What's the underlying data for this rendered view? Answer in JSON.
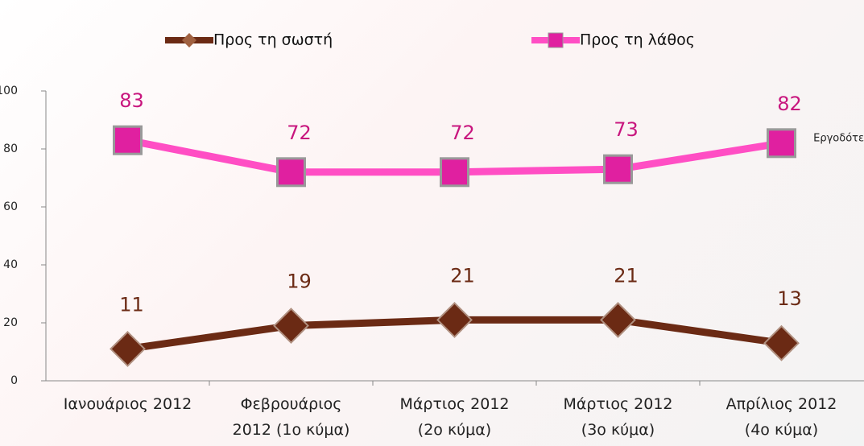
{
  "chart_data": {
    "type": "line",
    "categories": [
      "Ιανουάριος 2012",
      "Φεβρουάριος\n2012 (1ο κύμα)",
      "Μάρτιος 2012\n(2ο κύμα)",
      "Μάρτιος 2012\n(3ο κύμα)",
      "Απρίλιος 2012\n(4ο κύμα)"
    ],
    "series": [
      {
        "name": "Προς τη σωστή",
        "color": "#6b2a14",
        "label_color": "#6b2a14",
        "marker": "diamond",
        "values": [
          11,
          19,
          21,
          21,
          13
        ]
      },
      {
        "name": "Προς τη λάθος",
        "color": "#ff4ec4",
        "label_color": "#c8167e",
        "marker": "square",
        "values": [
          83,
          72,
          72,
          73,
          82
        ]
      }
    ],
    "ylim": [
      0,
      100
    ],
    "yticks": [
      0,
      20,
      40,
      60,
      80,
      100
    ],
    "annotation": "Εργοδότε"
  }
}
